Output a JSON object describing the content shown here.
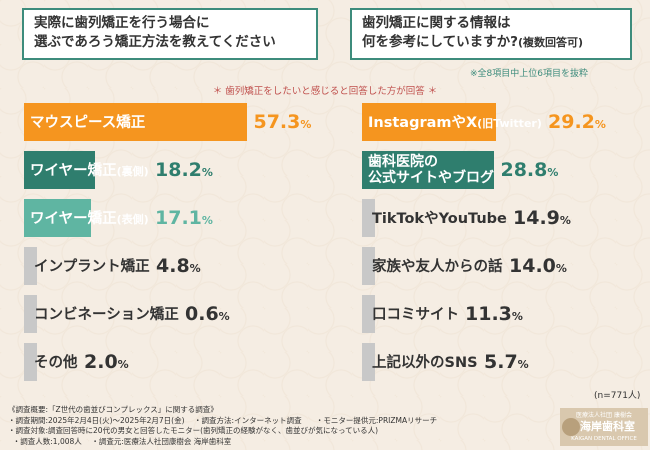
{
  "questions": {
    "left_line1": "実際に歯列矯正を行う場合に",
    "left_line2": "選ぶであろう矯正方法を教えてください",
    "right_line1": "歯列矯正に関する情報は",
    "right_line2a": "何を参考にしていますか?",
    "right_line2b": "(複数回答可)"
  },
  "note_right": "※全8項目中上位6項目を抜粋",
  "note_center": "＊ 歯列矯正をしたいと感じると回答した方が回答 ＊",
  "chart_data": [
    {
      "type": "bar",
      "orientation": "horizontal",
      "categories": [
        "マウスピース矯正",
        "ワイヤー矯正(裏側)",
        "ワイヤー矯正(表側)",
        "インプラント矯正",
        "コンビネーション矯正",
        "その他"
      ],
      "values": [
        57.3,
        18.2,
        17.1,
        4.8,
        0.6,
        2.0
      ],
      "unit": "%"
    },
    {
      "type": "bar",
      "orientation": "horizontal",
      "categories": [
        "InstagramやX(旧Twitter)",
        "歯科医院の公式サイトやブログ",
        "TikTokやYouTube",
        "家族や友人からの話",
        "口コミサイト",
        "上記以外のSNS"
      ],
      "values": [
        29.2,
        28.8,
        14.9,
        14.0,
        11.3,
        5.7
      ],
      "unit": "%"
    }
  ],
  "left_labels": [
    {
      "main": "マウスピース矯正",
      "sub": "",
      "num": "57.3",
      "color": "#f5951f",
      "text_color": "#ffffff",
      "num_color": "#f5951f"
    },
    {
      "main": "ワイヤー矯正",
      "sub": "(裏側)",
      "num": "18.2",
      "color": "#2f7e6e",
      "text_color": "#ffffff",
      "num_color": "#2f7e6e"
    },
    {
      "main": "ワイヤー矯正",
      "sub": "(表側)",
      "num": "17.1",
      "color": "#5fb5a2",
      "text_color": "#ffffff",
      "num_color": "#5fb5a2"
    },
    {
      "main": "インプラント矯正",
      "sub": "",
      "num": "4.8",
      "color": "#c8c8c8",
      "text_color": "#333333",
      "num_color": "#333333"
    },
    {
      "main": "コンビネーション矯正",
      "sub": "",
      "num": "0.6",
      "color": "#c8c8c8",
      "text_color": "#333333",
      "num_color": "#333333"
    },
    {
      "main": "その他",
      "sub": "",
      "num": "2.0",
      "color": "#c8c8c8",
      "text_color": "#333333",
      "num_color": "#333333"
    }
  ],
  "right_labels": [
    {
      "main": "InstagramやX",
      "sub": "(旧Twitter)",
      "num": "29.2",
      "color": "#f5951f",
      "text_color": "#ffffff",
      "num_color": "#f5951f"
    },
    {
      "main": "歯科医院の",
      "main2": "公式サイトやブログ",
      "sub": "",
      "num": "28.8",
      "color": "#2f7e6e",
      "text_color": "#ffffff",
      "num_color": "#2f7e6e"
    },
    {
      "main": "TikTokやYouTube",
      "sub": "",
      "num": "14.9",
      "color": "#c8c8c8",
      "text_color": "#333333",
      "num_color": "#333333"
    },
    {
      "main": "家族や友人からの話",
      "sub": "",
      "num": "14.0",
      "color": "#c8c8c8",
      "text_color": "#333333",
      "num_color": "#333333"
    },
    {
      "main": "口コミサイト",
      "sub": "",
      "num": "11.3",
      "color": "#c8c8c8",
      "text_color": "#333333",
      "num_color": "#333333"
    },
    {
      "main": "上記以外のSNS",
      "sub": "",
      "num": "5.7",
      "color": "#c8c8c8",
      "text_color": "#333333",
      "num_color": "#333333"
    }
  ],
  "pct_unit": "%",
  "n_label": "(n=771人)",
  "footer": {
    "line1": "《調査概要:「Z世代の歯並びコンプレックス」に関する調査》",
    "line2a": "・調査期間:2025年2月4日(火)〜2025年2月7日(金)",
    "line2b": "・調査方法:インターネット調査",
    "line2c": "・モニター提供元:PRIZMAリサーチ",
    "line3": "・調査対象:調査回答時に20代の男女と回答したモニター(歯列矯正の経験がなく、歯並びが気になっている人)",
    "line4a": "・調査人数:1,008人",
    "line4b": "・調査元:医療法人社団康樹会 海岸歯科室"
  },
  "logo": {
    "top": "医療法人社団 康樹会",
    "name": "海岸歯科室",
    "sub": "KAIGAN DENTAL OFFICE"
  }
}
